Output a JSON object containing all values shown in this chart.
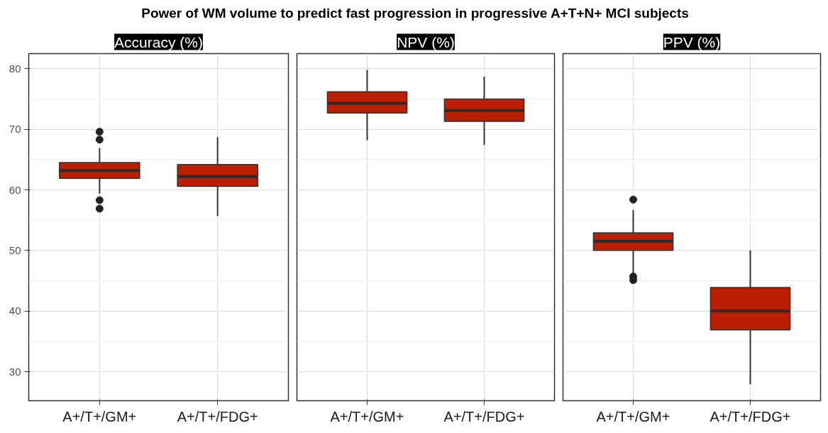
{
  "chart_data": [
    {
      "type": "box",
      "title": "Accuracy (%)",
      "annotations": [
        "Power of WM volume to predict fast progression in progressive A+T+N+ MCI subjects"
      ],
      "categories": [
        "A+/T+/GM+",
        "A+/T+/FDG+"
      ],
      "color": "#bb1e00",
      "ylim": [
        25.2,
        82.5
      ],
      "yticks": [
        30,
        40,
        50,
        60,
        70,
        80
      ],
      "grid": true,
      "boxes": [
        {
          "low": 59.4,
          "q1": 61.9,
          "median": 63.2,
          "q3": 64.5,
          "high": 66.9,
          "outliers": [
            69.6,
            68.3,
            58.3,
            56.9
          ]
        },
        {
          "low": 55.7,
          "q1": 60.6,
          "median": 62.2,
          "q3": 64.2,
          "high": 68.7
        }
      ]
    },
    {
      "type": "box",
      "title": "NPV (%)",
      "categories": [
        "A+/T+/GM+",
        "A+/T+/FDG+"
      ],
      "color": "#bb1e00",
      "ylim": [
        25.2,
        82.5
      ],
      "yticks": [
        30,
        40,
        50,
        60,
        70,
        80
      ],
      "grid": true,
      "tick_labels": "x",
      "boxes": [
        {
          "low": 68.2,
          "q1": 72.7,
          "median": 74.3,
          "q3": 76.2,
          "high": 79.8
        },
        {
          "low": 67.4,
          "q1": 71.3,
          "median": 73.1,
          "q3": 75.0,
          "high": 78.7
        }
      ]
    },
    {
      "type": "box",
      "title": "PPV (%)",
      "categories": [
        "A+/T+/GM+",
        "A+/T+/FDG+"
      ],
      "color": "#bb1e00",
      "ylim": [
        25.2,
        82.5
      ],
      "yticks": [
        30,
        40,
        50,
        60,
        70,
        80
      ],
      "grid": true,
      "tick_labels": "x",
      "boxes": [
        {
          "low": 46.2,
          "q1": 50.0,
          "median": 51.5,
          "q3": 52.9,
          "high": 56.7,
          "outliers": [
            58.4,
            45.7,
            45.1
          ]
        },
        {
          "low": 27.9,
          "q1": 36.9,
          "median": 40.0,
          "q3": 43.9,
          "high": 50.0
        }
      ]
    }
  ]
}
